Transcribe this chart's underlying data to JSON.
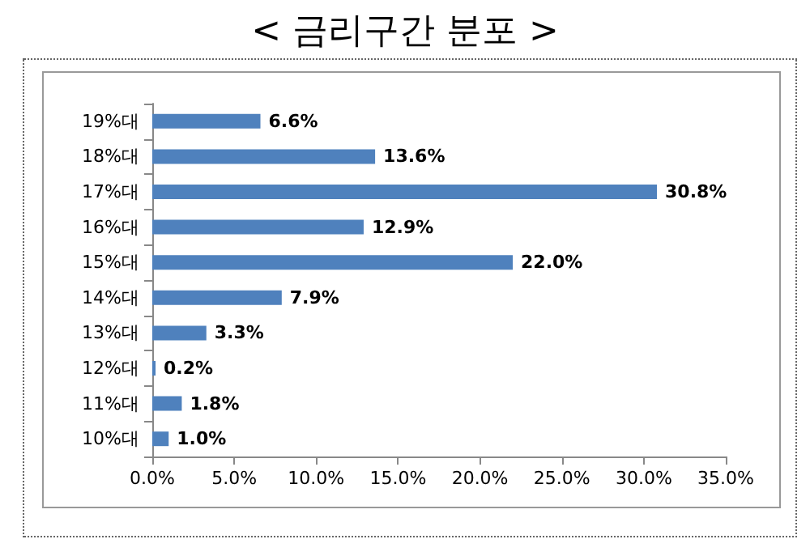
{
  "chart_data": {
    "type": "bar",
    "orientation": "horizontal",
    "title": "< 금리구간 분포 >",
    "categories": [
      "19%대",
      "18%대",
      "17%대",
      "16%대",
      "15%대",
      "14%대",
      "13%대",
      "12%대",
      "11%대",
      "10%대"
    ],
    "values": [
      6.6,
      13.6,
      30.8,
      12.9,
      22.0,
      7.9,
      3.3,
      0.2,
      1.8,
      1.0
    ],
    "value_labels": [
      "6.6%",
      "13.6%",
      "30.8%",
      "12.9%",
      "22.0%",
      "7.9%",
      "3.3%",
      "0.2%",
      "1.8%",
      "1.0%"
    ],
    "color": "#4f81bd",
    "xlim": [
      0,
      35
    ],
    "xticks": [
      {
        "value": 0,
        "label": "0.0%"
      },
      {
        "value": 5,
        "label": "5.0%"
      },
      {
        "value": 10,
        "label": "10.0%"
      },
      {
        "value": 15,
        "label": "15.0%"
      },
      {
        "value": 20,
        "label": "20.0%"
      },
      {
        "value": 25,
        "label": "25.0%"
      },
      {
        "value": 30,
        "label": "30.0%"
      },
      {
        "value": 35,
        "label": "35.0%"
      }
    ],
    "grid": false
  }
}
